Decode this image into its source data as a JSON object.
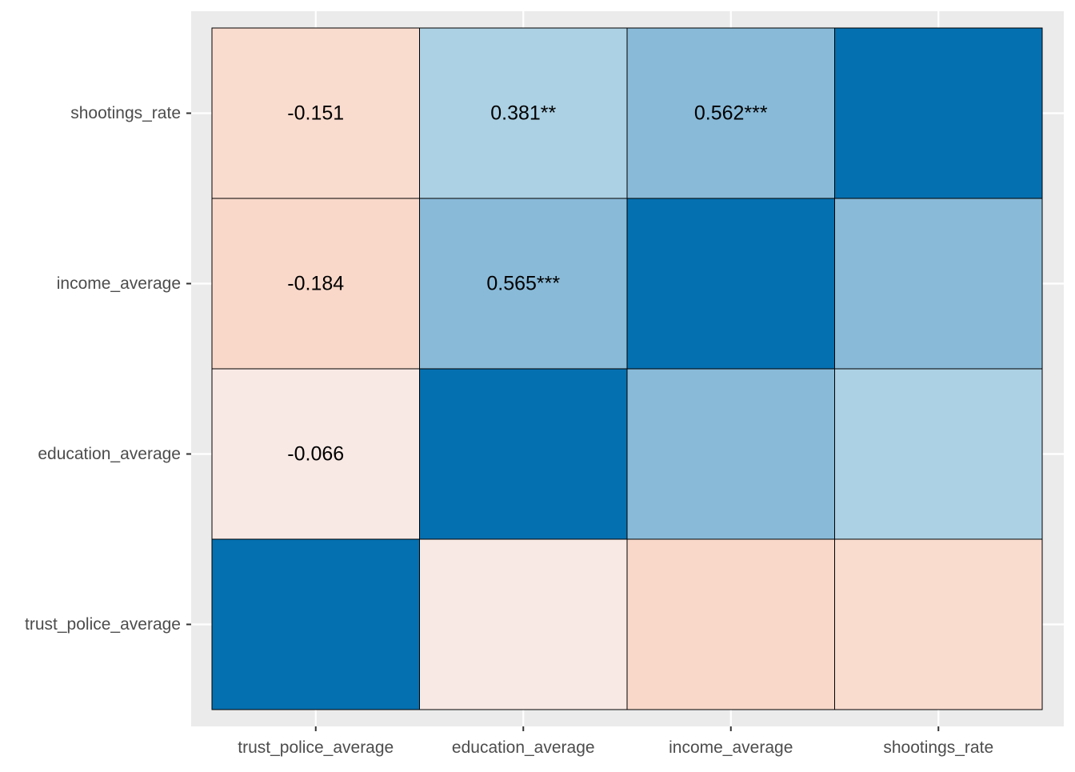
{
  "chart_data": {
    "type": "heatmap",
    "title": "",
    "xlabel": "",
    "ylabel": "",
    "x_categories": [
      "trust_police_average",
      "education_average",
      "income_average",
      "shootings_rate"
    ],
    "y_categories": [
      "trust_police_average",
      "education_average",
      "income_average",
      "shootings_rate"
    ],
    "grid": true,
    "legend": "none",
    "colors": {
      "panel": "#ebebeb",
      "gridline": "#ffffff",
      "cell_border": "#000000",
      "strong_positive": "#0570b0",
      "moderate_positive": "#89bad8",
      "weak_positive": "#acd1e4",
      "weak_negative": "#f8e9e4",
      "mild_negative": "#fadccf",
      "moderate_negative": "#f9d8c9"
    },
    "cells": [
      {
        "x": "trust_police_average",
        "y": "shootings_rate",
        "value": -0.151,
        "label": "-0.151"
      },
      {
        "x": "education_average",
        "y": "shootings_rate",
        "value": 0.381,
        "label": "0.381**"
      },
      {
        "x": "income_average",
        "y": "shootings_rate",
        "value": 0.562,
        "label": "0.562***"
      },
      {
        "x": "shootings_rate",
        "y": "shootings_rate",
        "value": 1.0,
        "label": ""
      },
      {
        "x": "trust_police_average",
        "y": "income_average",
        "value": -0.184,
        "label": "-0.184"
      },
      {
        "x": "education_average",
        "y": "income_average",
        "value": 0.565,
        "label": "0.565***"
      },
      {
        "x": "income_average",
        "y": "income_average",
        "value": 1.0,
        "label": ""
      },
      {
        "x": "shootings_rate",
        "y": "income_average",
        "value": 0.562,
        "label": ""
      },
      {
        "x": "trust_police_average",
        "y": "education_average",
        "value": -0.066,
        "label": "-0.066"
      },
      {
        "x": "education_average",
        "y": "education_average",
        "value": 1.0,
        "label": ""
      },
      {
        "x": "income_average",
        "y": "education_average",
        "value": 0.565,
        "label": ""
      },
      {
        "x": "shootings_rate",
        "y": "education_average",
        "value": 0.381,
        "label": ""
      },
      {
        "x": "trust_police_average",
        "y": "trust_police_average",
        "value": 1.0,
        "label": ""
      },
      {
        "x": "education_average",
        "y": "trust_police_average",
        "value": -0.066,
        "label": ""
      },
      {
        "x": "income_average",
        "y": "trust_police_average",
        "value": -0.184,
        "label": ""
      },
      {
        "x": "shootings_rate",
        "y": "trust_police_average",
        "value": -0.151,
        "label": ""
      }
    ]
  }
}
